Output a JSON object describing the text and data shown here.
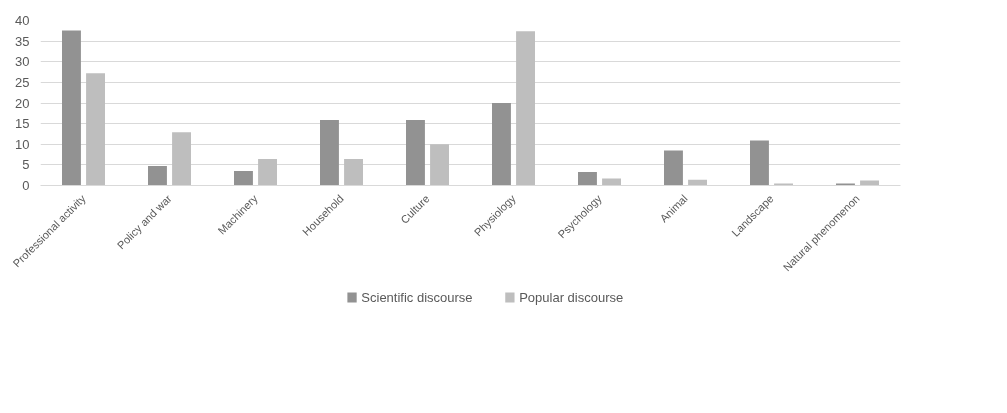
{
  "chart_data": {
    "type": "bar",
    "categories": [
      "Professional activity",
      "Policy and war",
      "Machinery",
      "Household",
      "Culture",
      "Physiology",
      "Psychology",
      "Animal",
      "Landscape",
      "Natural phenomenon"
    ],
    "series": [
      {
        "name": "Scientific discourse",
        "color": "#929292",
        "values": [
          37.6,
          4.7,
          3.5,
          15.9,
          15.9,
          20,
          3.3,
          8.5,
          10.9,
          0.5
        ]
      },
      {
        "name": "Popular discourse",
        "color": "#bebebe",
        "values": [
          27.2,
          12.9,
          6.4,
          6.4,
          10,
          37.4,
          1.7,
          1.4,
          0.5,
          1.2
        ]
      }
    ],
    "ylim": [
      0,
      40
    ],
    "yticks": [
      0,
      5,
      10,
      15,
      20,
      25,
      30,
      35,
      40
    ],
    "grid": "y",
    "legend": "bottom"
  }
}
